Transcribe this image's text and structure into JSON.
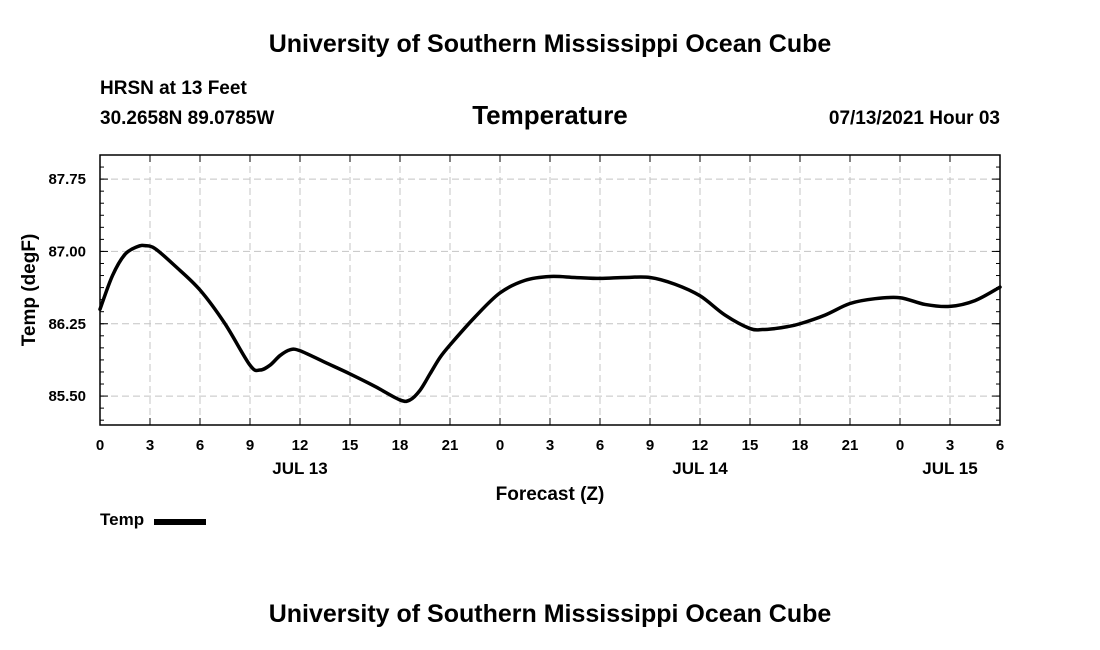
{
  "header": {
    "org_title": "University of Southern Mississippi Ocean Cube",
    "station": "HRSN at 13 Feet",
    "coordinates": "30.2658N  89.0785W",
    "run_time": "07/13/2021 Hour 03"
  },
  "footer": {
    "org_title": "University of Southern Mississippi Ocean Cube"
  },
  "legend": {
    "label": "Temp"
  },
  "chart_data": {
    "type": "line",
    "title": "Temperature",
    "xlabel": "Forecast (Z)",
    "ylabel": "Temp (degF)",
    "xlim": [
      0,
      54
    ],
    "ylim": [
      85.2,
      88.0
    ],
    "yticks": [
      85.5,
      86.25,
      87.0,
      87.75
    ],
    "ytick_labels": [
      "85.50",
      "86.25",
      "87.00",
      "87.75"
    ],
    "xticks": [
      0,
      3,
      6,
      9,
      12,
      15,
      18,
      21,
      24,
      27,
      30,
      33,
      36,
      39,
      42,
      45,
      48,
      51,
      54
    ],
    "xtick_labels": [
      "0",
      "3",
      "6",
      "9",
      "12",
      "15",
      "18",
      "21",
      "0",
      "3",
      "6",
      "9",
      "12",
      "15",
      "18",
      "21",
      "0",
      "3",
      "6"
    ],
    "date_labels": [
      {
        "x": 12,
        "label": "JUL 13"
      },
      {
        "x": 36,
        "label": "JUL 14"
      },
      {
        "x": 51,
        "label": "JUL 15"
      }
    ],
    "grid": true,
    "series": [
      {
        "name": "Temp",
        "color": "#000000",
        "x": [
          0,
          0.75,
          1.5,
          2.25,
          2.7,
          3.3,
          4.5,
          6,
          7.5,
          9,
          9.6,
          10.2,
          10.8,
          11.4,
          12,
          13.5,
          15,
          16.5,
          18,
          18.6,
          19.2,
          19.8,
          20.4,
          21,
          22.5,
          24,
          25.5,
          27,
          28.5,
          30,
          31.5,
          33,
          34.5,
          36,
          37.5,
          39,
          39.75,
          40.5,
          41.25,
          42,
          43.5,
          45,
          46.5,
          48,
          49.5,
          51,
          52.5,
          54
        ],
        "y": [
          86.4,
          86.75,
          86.97,
          87.05,
          87.06,
          87.03,
          86.85,
          86.6,
          86.25,
          85.82,
          85.77,
          85.82,
          85.92,
          85.98,
          85.97,
          85.85,
          85.73,
          85.6,
          85.46,
          85.46,
          85.56,
          85.73,
          85.9,
          86.03,
          86.32,
          86.57,
          86.7,
          86.74,
          86.73,
          86.72,
          86.73,
          86.73,
          86.66,
          86.54,
          86.34,
          86.2,
          86.19,
          86.2,
          86.22,
          86.25,
          86.34,
          86.46,
          86.51,
          86.52,
          86.45,
          86.43,
          86.49,
          86.63
        ]
      }
    ]
  }
}
